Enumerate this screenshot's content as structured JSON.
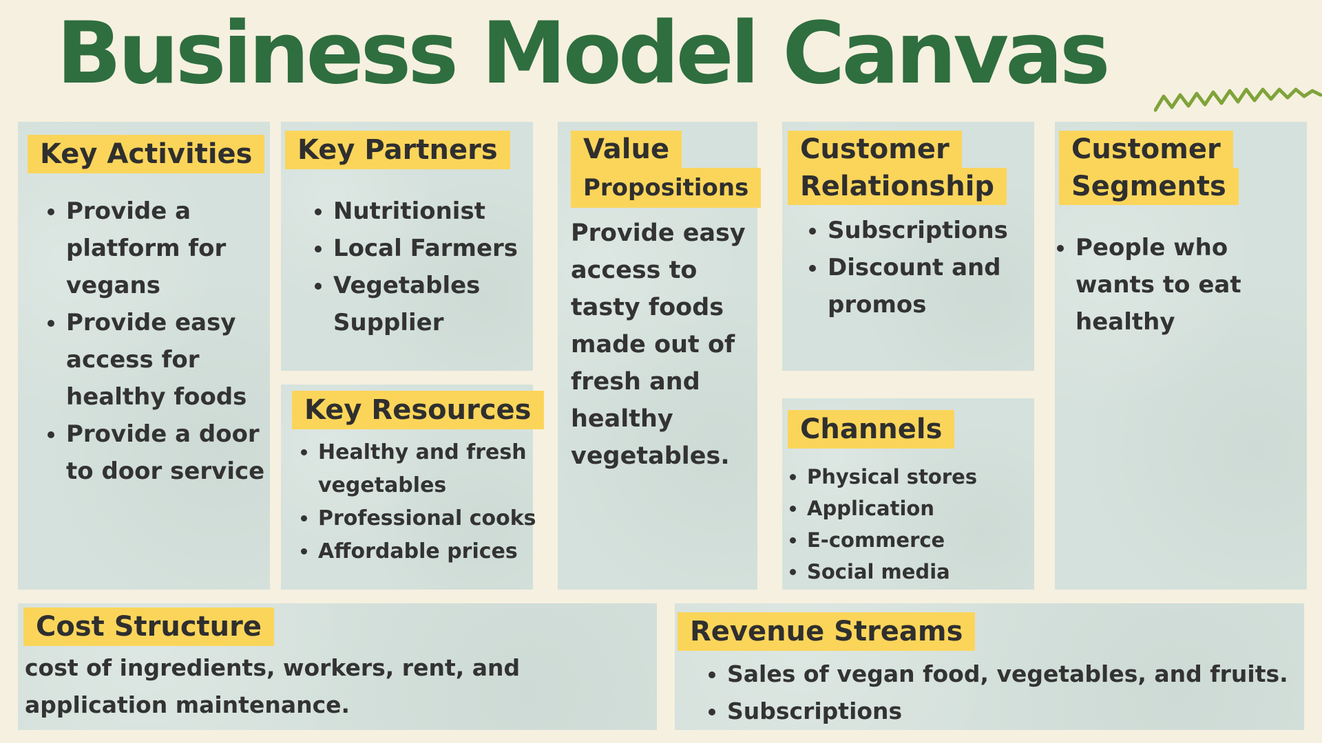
{
  "title": "Business Model Canvas",
  "colors": {
    "background": "#f6f0e0",
    "title": "#2f6e3f",
    "card": "#d5e1dc",
    "label": "#fbd55a",
    "squiggle": "#7fa33a"
  },
  "key_activities": {
    "label": "Key Activities",
    "items": [
      "Provide a platform for vegans",
      "Provide easy access for healthy foods",
      "Provide a door to door service"
    ]
  },
  "key_partners": {
    "label": "Key Partners",
    "items": [
      "Nutritionist",
      "Local Farmers",
      "Vegetables Supplier"
    ]
  },
  "key_resources": {
    "label": "Key Resources",
    "items": [
      "Healthy and fresh vegetables",
      "Professional cooks",
      "Affordable prices"
    ]
  },
  "value_propositions": {
    "label_line1": "Value",
    "label_line2": "Propositions",
    "text": "Provide easy access to tasty foods made out of fresh and healthy vegetables."
  },
  "customer_relationship": {
    "label_line1": "Customer",
    "label_line2": "Relationship",
    "items": [
      "Subscriptions",
      "Discount and promos"
    ]
  },
  "channels": {
    "label": "Channels",
    "items": [
      "Physical stores",
      "Application",
      "E-commerce",
      "Social media"
    ]
  },
  "customer_segments": {
    "label_line1": "Customer",
    "label_line2": "Segments",
    "items": [
      "People who wants to eat healthy"
    ]
  },
  "cost_structure": {
    "label": "Cost Structure",
    "text": "cost of ingredients, workers, rent, and application maintenance."
  },
  "revenue_streams": {
    "label": "Revenue Streams",
    "items": [
      "Sales of vegan food, vegetables, and fruits.",
      "Subscriptions"
    ]
  }
}
